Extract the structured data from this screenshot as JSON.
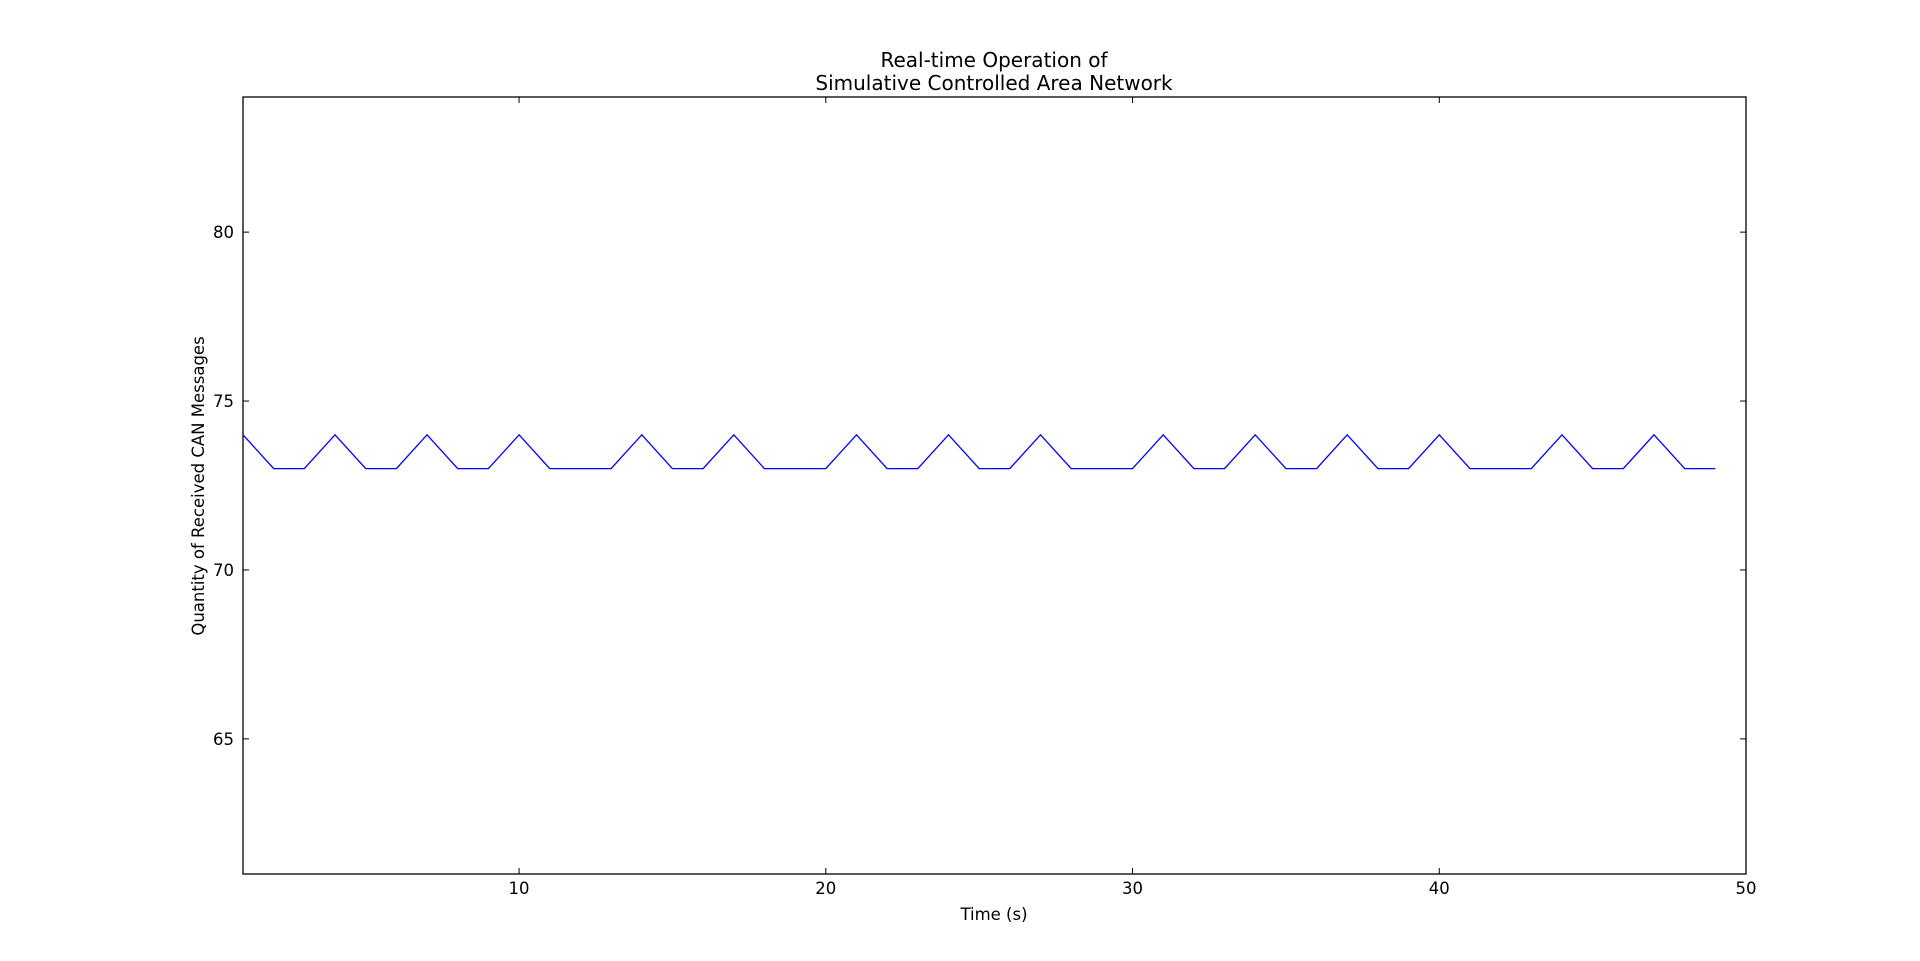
{
  "chart_data": {
    "type": "line",
    "title_lines": [
      "Real-time Operation of",
      "Simulative Controlled Area Network"
    ],
    "xlabel": "Time (s)",
    "ylabel": "Quantity of Received CAN Messages",
    "xlim": [
      1,
      50
    ],
    "ylim": [
      61,
      84
    ],
    "xticks": [
      10,
      20,
      30,
      40,
      50
    ],
    "yticks": [
      65,
      70,
      75,
      80
    ],
    "grid": false,
    "series": [
      {
        "color": "#0000ff",
        "x": [
          1,
          2,
          3,
          4,
          5,
          6,
          7,
          8,
          9,
          10,
          11,
          12,
          13,
          14,
          15,
          16,
          17,
          18,
          19,
          20,
          21,
          22,
          23,
          24,
          25,
          26,
          27,
          28,
          29,
          30,
          31,
          32,
          33,
          34,
          35,
          36,
          37,
          38,
          39,
          40,
          41,
          42,
          43,
          44,
          45,
          46,
          47,
          48,
          49
        ],
        "y": [
          74,
          73,
          73,
          74,
          73,
          73,
          74,
          73,
          73,
          74,
          73,
          73,
          73,
          74,
          73,
          73,
          74,
          73,
          73,
          73,
          74,
          73,
          73,
          74,
          73,
          73,
          74,
          73,
          73,
          73,
          74,
          73,
          73,
          74,
          73,
          73,
          74,
          73,
          73,
          74,
          73,
          73,
          73,
          74,
          73,
          73,
          74,
          73,
          73
        ]
      }
    ]
  }
}
